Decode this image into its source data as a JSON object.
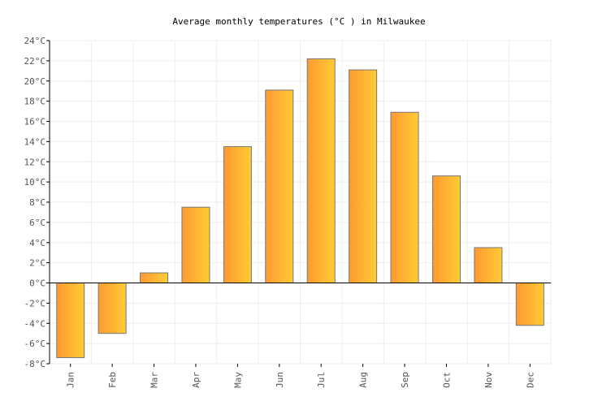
{
  "chart_data": {
    "type": "bar",
    "title": "Average monthly temperatures (°C ) in Milwaukee",
    "xlabel": "",
    "ylabel": "",
    "categories": [
      "Jan",
      "Feb",
      "Mar",
      "Apr",
      "May",
      "Jun",
      "Jul",
      "Aug",
      "Sep",
      "Oct",
      "Nov",
      "Dec"
    ],
    "values": [
      -7.4,
      -5.0,
      1.0,
      7.5,
      13.5,
      19.1,
      22.2,
      21.1,
      16.9,
      10.6,
      3.5,
      -4.2
    ],
    "ylim": [
      -8,
      24
    ],
    "yticks": [
      "-8°C",
      "-6°C",
      "-4°C",
      "-2°C",
      "0°C",
      "2°C",
      "4°C",
      "6°C",
      "8°C",
      "10°C",
      "12°C",
      "14°C",
      "16°C",
      "18°C",
      "20°C",
      "22°C",
      "24°C"
    ],
    "grid": true,
    "colors": {
      "bar_start": "#ff9933",
      "bar_end": "#ffcc33",
      "bar_stroke": "#777777",
      "grid": "#eeeeee"
    }
  }
}
